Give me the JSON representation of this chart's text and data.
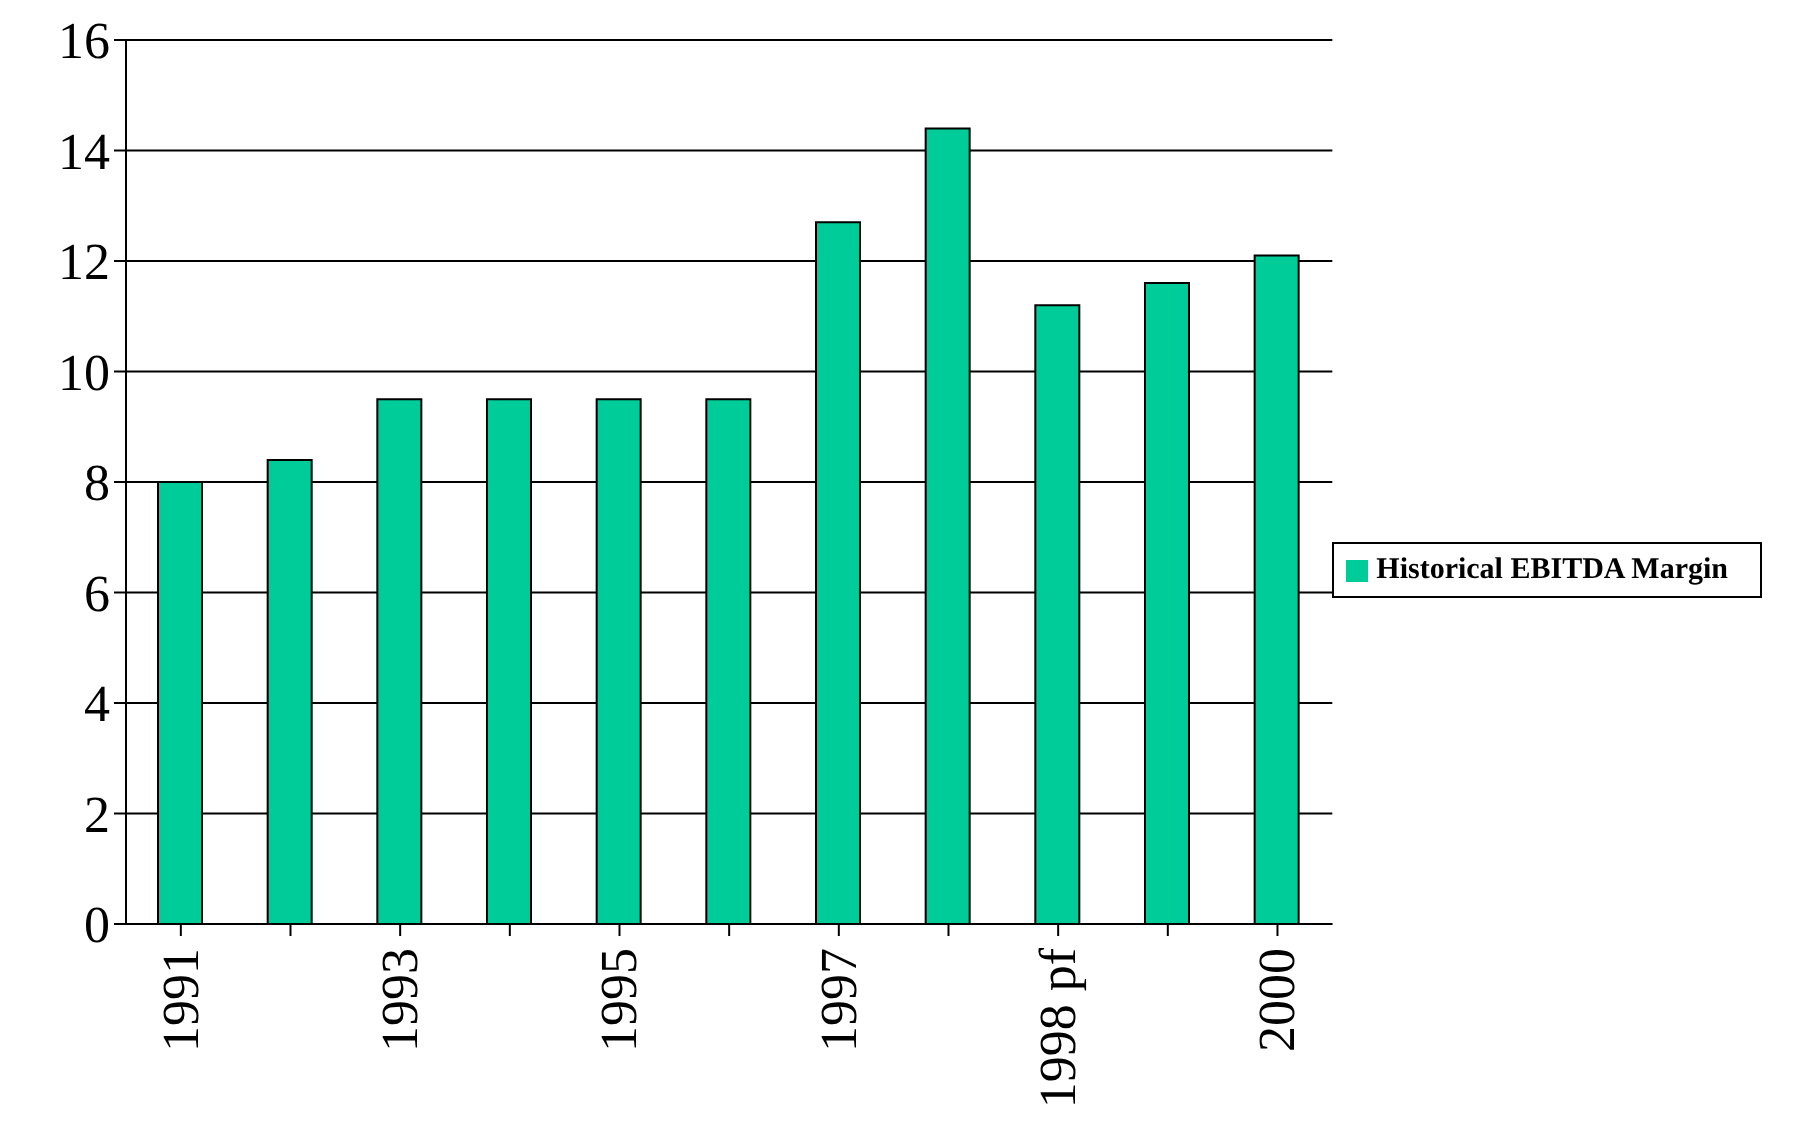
{
  "chart_data": {
    "type": "bar",
    "categories": [
      "1991",
      null,
      "1993",
      null,
      "1995",
      null,
      "1997",
      null,
      "1998 pf",
      null,
      "2000"
    ],
    "series": [
      {
        "name": "Historical EBITDA Margin",
        "color": "#00cc99",
        "values": [
          8.0,
          8.4,
          9.5,
          9.5,
          9.5,
          9.5,
          12.7,
          14.4,
          11.2,
          11.6,
          12.1
        ]
      }
    ],
    "ylim": [
      0,
      16
    ],
    "yticks": [
      0,
      2,
      4,
      6,
      8,
      10,
      12,
      14,
      16
    ],
    "grid": "y",
    "legend": "right"
  }
}
